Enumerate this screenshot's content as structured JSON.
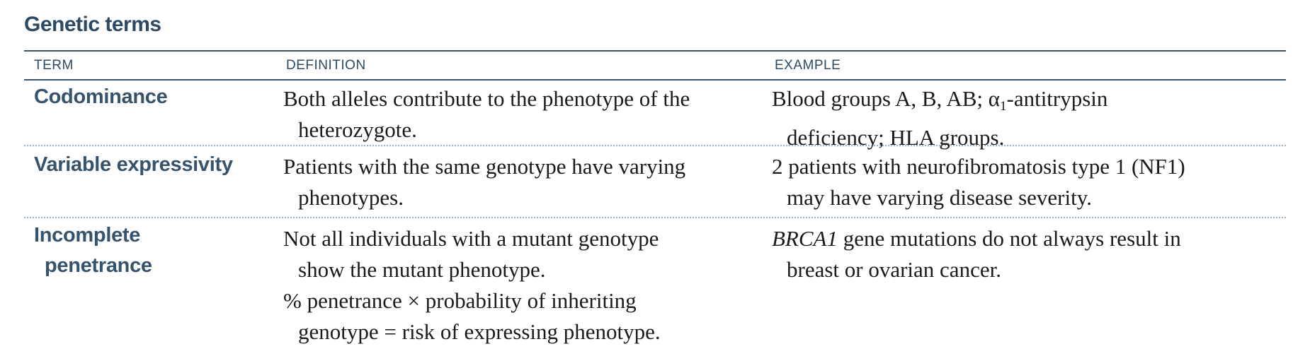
{
  "title": "Genetic terms",
  "columns": {
    "term": "TERM",
    "definition": "DEFINITION",
    "example": "EXAMPLE"
  },
  "rows": [
    {
      "term": [
        "Codominance"
      ],
      "definition": [
        "Both alleles contribute to the phenotype of the",
        "heterozygote."
      ],
      "example": {
        "line1_pre": "Blood groups A, B, AB; ",
        "alpha": "α",
        "alpha_sub": "1",
        "line1_post": "-antitrypsin",
        "line2": "deficiency; HLA groups."
      }
    },
    {
      "term": [
        "Variable expressivity"
      ],
      "definition": [
        "Patients with the same genotype have varying",
        "phenotypes."
      ],
      "example": [
        "2 patients with neurofibromatosis type 1 (NF1)",
        "may have varying disease severity."
      ]
    },
    {
      "term": [
        "Incomplete",
        "penetrance"
      ],
      "definition": [
        "Not all individuals with a mutant genotype",
        "show the mutant phenotype.",
        "% penetrance × probability of inheriting",
        "genotype = risk of expressing phenotype."
      ],
      "example": {
        "gene": "BRCA1",
        "line1_post": " gene mutations do not always result in",
        "line2": "breast or ovarian cancer."
      }
    }
  ]
}
